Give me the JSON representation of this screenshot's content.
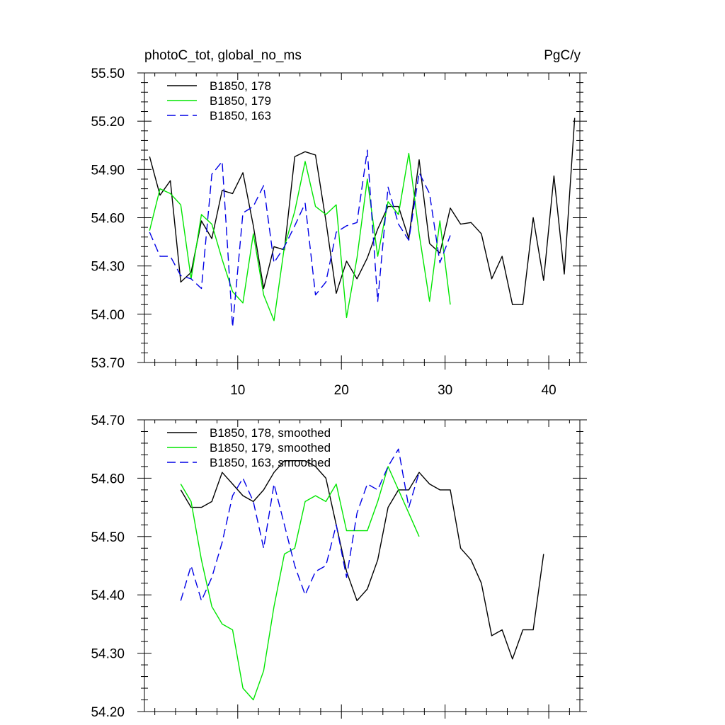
{
  "chart_data": [
    {
      "type": "line",
      "title_left": "photoC_tot, global_no_ms",
      "title_right": "PgC/y",
      "xlim": [
        1,
        43
      ],
      "ylim": [
        53.7,
        55.5
      ],
      "x_ticks": [
        10,
        20,
        30,
        40
      ],
      "y_ticks": [
        "53.70",
        "54.00",
        "54.30",
        "54.60",
        "54.90",
        "55.20",
        "55.50"
      ],
      "legend_position": "top-left",
      "series": [
        {
          "name": "B1850, 178",
          "color": "#000000",
          "dash": "solid",
          "x": [
            1.5,
            2.5,
            3.5,
            4.5,
            5.5,
            6.5,
            7.5,
            8.5,
            9.5,
            10.5,
            11.5,
            12.5,
            13.5,
            14.5,
            15.5,
            16.5,
            17.5,
            18.5,
            19.5,
            20.5,
            21.5,
            22.5,
            23.5,
            24.5,
            25.5,
            26.5,
            27.5,
            28.5,
            29.5,
            30.5,
            31.5,
            32.5,
            33.5,
            34.5,
            35.5,
            36.5,
            37.5,
            38.5,
            39.5,
            40.5,
            41.5,
            42.5
          ],
          "y": [
            54.98,
            54.74,
            54.83,
            54.2,
            54.26,
            54.58,
            54.47,
            54.77,
            54.75,
            54.88,
            54.55,
            54.16,
            54.42,
            54.4,
            54.98,
            55.01,
            54.99,
            54.58,
            54.13,
            54.33,
            54.22,
            54.35,
            54.53,
            54.67,
            54.67,
            54.47,
            54.96,
            54.44,
            54.38,
            54.66,
            54.56,
            54.57,
            54.5,
            54.22,
            54.36,
            54.06,
            54.06,
            54.6,
            54.21,
            54.86,
            54.25,
            55.22
          ]
        },
        {
          "name": "B1850, 179",
          "color": "#00e600",
          "dash": "solid",
          "x": [
            1.5,
            2.5,
            3.5,
            4.5,
            5.5,
            6.5,
            7.5,
            8.5,
            9.5,
            10.5,
            11.5,
            12.5,
            13.5,
            14.5,
            15.5,
            16.5,
            17.5,
            18.5,
            19.5,
            20.5,
            21.5,
            22.5,
            23.5,
            24.5,
            25.5,
            26.5,
            27.5,
            28.5,
            29.5,
            30.5
          ],
          "y": [
            54.52,
            54.78,
            54.75,
            54.68,
            54.22,
            54.62,
            54.56,
            54.34,
            54.14,
            54.07,
            54.5,
            54.12,
            53.96,
            54.42,
            54.64,
            54.95,
            54.67,
            54.62,
            54.68,
            53.98,
            54.35,
            54.84,
            54.36,
            54.7,
            54.62,
            55.0,
            54.5,
            54.08,
            54.58,
            54.06
          ]
        },
        {
          "name": "B1850, 163",
          "color": "#0000e6",
          "dash": "dashed",
          "x": [
            1.5,
            2.5,
            3.5,
            4.5,
            5.5,
            6.5,
            7.5,
            8.5,
            9.5,
            10.5,
            11.5,
            12.5,
            13.5,
            14.5,
            15.5,
            16.5,
            17.5,
            18.5,
            19.5,
            20.5,
            21.5,
            22.5,
            23.5,
            24.5,
            25.5,
            26.5,
            27.5,
            28.5,
            29.5,
            30.5
          ],
          "y": [
            54.51,
            54.36,
            54.36,
            54.24,
            54.22,
            54.16,
            54.87,
            54.95,
            53.92,
            54.63,
            54.67,
            54.8,
            54.32,
            54.42,
            54.55,
            54.69,
            54.12,
            54.2,
            54.51,
            54.55,
            54.57,
            55.02,
            54.08,
            54.79,
            54.56,
            54.46,
            54.88,
            54.75,
            54.32,
            54.49
          ]
        }
      ]
    },
    {
      "type": "line",
      "xlim": [
        1,
        43
      ],
      "ylim": [
        54.2,
        54.7
      ],
      "y_ticks": [
        "54.20",
        "54.30",
        "54.40",
        "54.50",
        "54.60",
        "54.70"
      ],
      "legend_position": "top-left",
      "series": [
        {
          "name": "B1850, 178, smoothed",
          "color": "#000000",
          "dash": "solid",
          "x": [
            4.5,
            5.5,
            6.5,
            7.5,
            8.5,
            9.5,
            10.5,
            11.5,
            12.5,
            13.5,
            14.5,
            15.5,
            16.5,
            17.5,
            18.5,
            19.5,
            20.5,
            21.5,
            22.5,
            23.5,
            24.5,
            25.5,
            26.5,
            27.5,
            28.5,
            29.5,
            30.5,
            31.5,
            32.5,
            33.5,
            34.5,
            35.5,
            36.5,
            37.5,
            38.5,
            39.5
          ],
          "y": [
            54.58,
            54.55,
            54.55,
            54.56,
            54.61,
            54.59,
            54.57,
            54.56,
            54.58,
            54.61,
            54.63,
            54.63,
            54.63,
            54.62,
            54.6,
            54.52,
            54.44,
            54.39,
            54.41,
            54.46,
            54.55,
            54.58,
            54.58,
            54.61,
            54.59,
            54.58,
            54.58,
            54.48,
            54.46,
            54.42,
            54.33,
            54.34,
            54.29,
            54.34,
            54.34,
            54.47
          ]
        },
        {
          "name": "B1850, 179, smoothed",
          "color": "#00e600",
          "dash": "solid",
          "x": [
            4.5,
            5.5,
            6.5,
            7.5,
            8.5,
            9.5,
            10.5,
            11.5,
            12.5,
            13.5,
            14.5,
            15.5,
            16.5,
            17.5,
            18.5,
            19.5,
            20.5,
            21.5,
            22.5,
            23.5,
            24.5,
            25.5,
            26.5,
            27.5
          ],
          "y": [
            54.59,
            54.56,
            54.46,
            54.38,
            54.35,
            54.34,
            54.24,
            54.22,
            54.27,
            54.38,
            54.47,
            54.48,
            54.56,
            54.57,
            54.56,
            54.59,
            54.51,
            54.51,
            54.51,
            54.56,
            54.62,
            54.58,
            54.54,
            54.5
          ]
        },
        {
          "name": "B1850, 163, smoothed",
          "color": "#0000e6",
          "dash": "dashed",
          "x": [
            4.5,
            5.5,
            6.5,
            7.5,
            8.5,
            9.5,
            10.5,
            11.5,
            12.5,
            13.5,
            14.5,
            15.5,
            16.5,
            17.5,
            18.5,
            19.5,
            20.5,
            21.5,
            22.5,
            23.5,
            24.5,
            25.5,
            26.5,
            27.5
          ],
          "y": [
            54.39,
            54.45,
            54.39,
            54.43,
            54.49,
            54.57,
            54.6,
            54.56,
            54.48,
            54.59,
            54.52,
            54.45,
            54.4,
            54.44,
            54.45,
            54.52,
            54.43,
            54.54,
            54.59,
            54.58,
            54.62,
            54.65,
            54.55,
            54.61
          ]
        }
      ]
    }
  ]
}
